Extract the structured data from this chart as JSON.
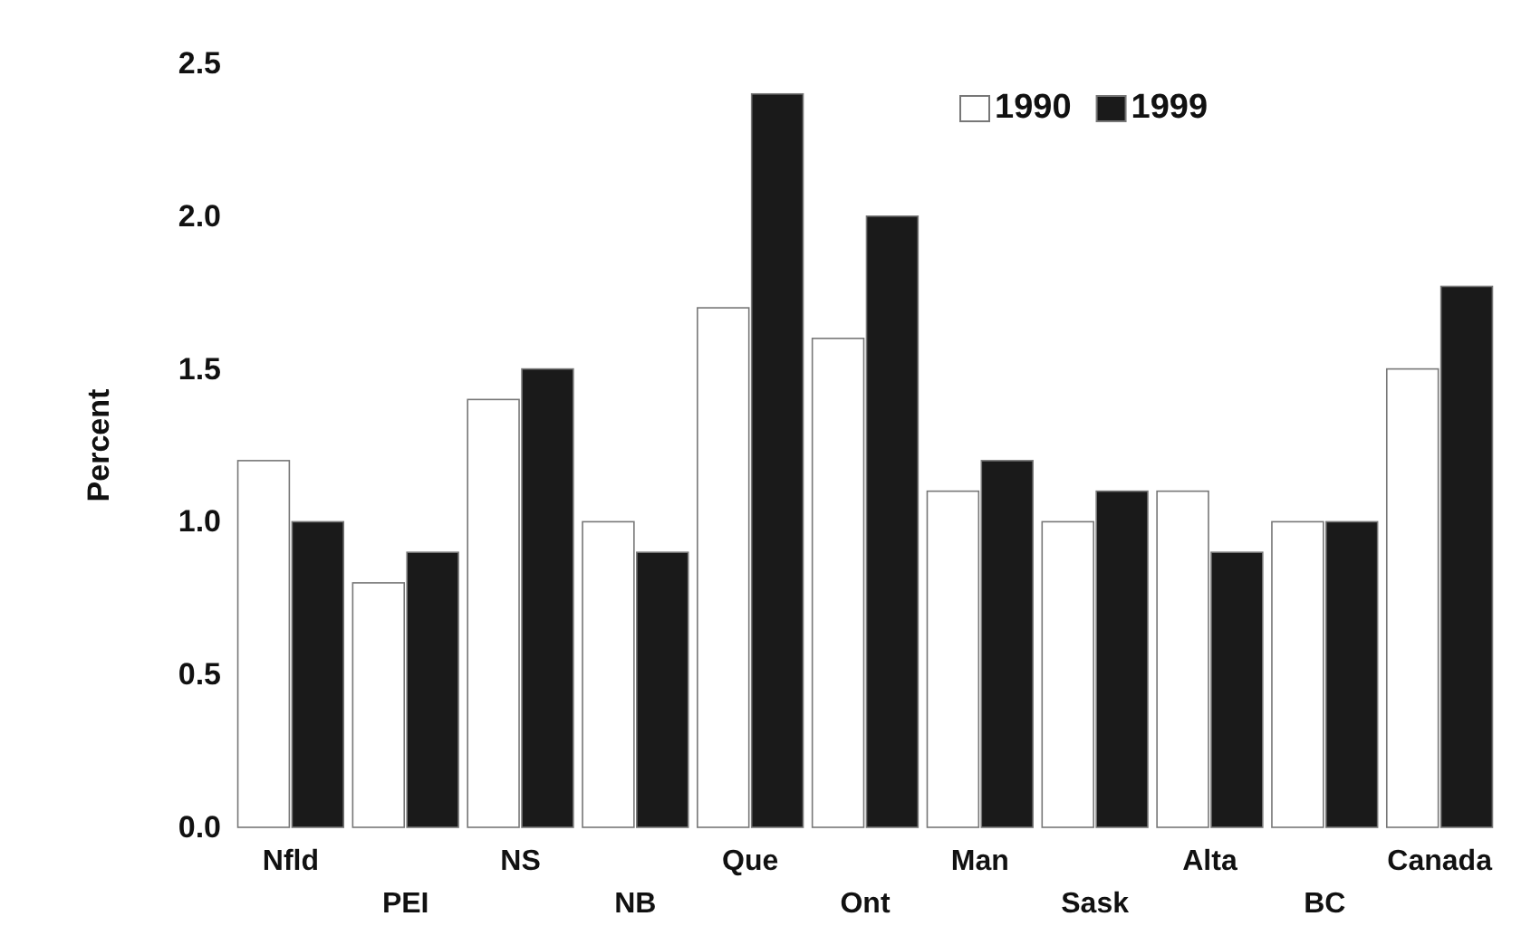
{
  "chart_data": {
    "type": "bar",
    "ylabel": "Percent",
    "categories": [
      "Nfld",
      "PEI",
      "NS",
      "NB",
      "Que",
      "Ont",
      "Man",
      "Sask",
      "Alta",
      "BC",
      "Canada"
    ],
    "series": [
      {
        "name": "1990",
        "color": "#ffffff",
        "values": [
          1.2,
          0.8,
          1.4,
          1.0,
          1.7,
          1.6,
          1.1,
          1.0,
          1.1,
          1.0,
          1.5
        ]
      },
      {
        "name": "1999",
        "color": "#1a1a1a",
        "values": [
          1.0,
          0.9,
          1.5,
          0.9,
          2.4,
          2.0,
          1.2,
          1.1,
          0.9,
          1.0,
          1.77
        ]
      }
    ],
    "ylim": [
      0,
      2.5
    ],
    "yticks": [
      {
        "value": 0,
        "label": "0.0"
      },
      {
        "value": 0.5,
        "label": "0.5"
      },
      {
        "value": 1,
        "label": "1.0"
      },
      {
        "value": 1.5,
        "label": "1.5"
      },
      {
        "value": 2,
        "label": "2.0"
      },
      {
        "value": 2.5,
        "label": "2.5"
      }
    ],
    "legend": "top right"
  }
}
